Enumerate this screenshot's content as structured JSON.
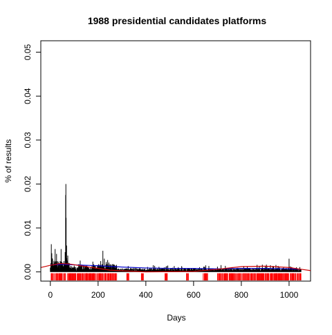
{
  "chart_data": {
    "type": "bar",
    "title": "1988 presidential candidates platforms",
    "xlabel": "Days",
    "ylabel": "% of results",
    "xlim": [
      -40,
      1090
    ],
    "ylim": [
      -0.0021,
      0.0526
    ],
    "x_ticks": [
      0,
      200,
      400,
      600,
      800,
      1000
    ],
    "y_ticks": [
      0.0,
      0.01,
      0.02,
      0.03,
      0.04,
      0.05
    ],
    "y_tick_labels": [
      "0.00",
      "0.01",
      "0.02",
      "0.03",
      "0.04",
      "0.05"
    ],
    "grid": false,
    "legend": "none",
    "colors": {
      "bars": "#000000",
      "smooth_red": "#cc0000",
      "smooth_blue": "#0000cc",
      "rug": "#ff0000"
    },
    "bar_series": {
      "name": "",
      "x_start": 0,
      "x_end": 1050,
      "x_step": 1,
      "segments": [
        {
          "from": 0,
          "to": 10,
          "base": 0.0035,
          "amp": 0.0028
        },
        {
          "from": 10,
          "to": 60,
          "base": 0.0025,
          "amp": 0.0025
        },
        {
          "from": 60,
          "to": 75,
          "base": 0.004,
          "amp": 0.003
        },
        {
          "from": 75,
          "to": 120,
          "base": 0.0015,
          "amp": 0.0015
        },
        {
          "from": 120,
          "to": 200,
          "base": 0.0015,
          "amp": 0.0015
        },
        {
          "from": 200,
          "to": 280,
          "base": 0.0018,
          "amp": 0.0018
        },
        {
          "from": 280,
          "to": 700,
          "base": 0.0008,
          "amp": 0.0008
        },
        {
          "from": 700,
          "to": 1050,
          "base": 0.0009,
          "amp": 0.0009
        }
      ],
      "peaks": [
        {
          "x": 4,
          "y": 0.0063
        },
        {
          "x": 20,
          "y": 0.0052
        },
        {
          "x": 45,
          "y": 0.0052
        },
        {
          "x": 62,
          "y": 0.0045
        },
        {
          "x": 64,
          "y": 0.0175
        },
        {
          "x": 65,
          "y": 0.02
        },
        {
          "x": 66,
          "y": 0.0123
        },
        {
          "x": 68,
          "y": 0.006
        },
        {
          "x": 220,
          "y": 0.0048
        },
        {
          "x": 1000,
          "y": 0.003
        }
      ]
    },
    "smooth_red": {
      "x": [
        -40,
        0,
        40,
        80,
        150,
        250,
        400,
        600,
        700,
        800,
        900,
        1000,
        1050,
        1090
      ],
      "y": [
        0.001,
        0.0015,
        0.0019,
        0.0018,
        0.0012,
        0.0004,
        0.0,
        0.0001,
        0.0006,
        0.0012,
        0.0013,
        0.001,
        0.0006,
        0.0003
      ]
    },
    "smooth_blue": {
      "x": [
        0,
        50,
        100,
        200,
        300,
        400,
        500,
        600,
        700,
        800,
        900,
        1000,
        1050
      ],
      "y": [
        0.0016,
        0.0017,
        0.0016,
        0.0014,
        0.0011,
        0.0009,
        0.0008,
        0.0008,
        0.0007,
        0.0008,
        0.0008,
        0.0007,
        0.0006
      ]
    },
    "rug_x_ranges": [
      [
        0,
        280
      ],
      [
        320,
        330
      ],
      [
        380,
        390
      ],
      [
        480,
        490
      ],
      [
        570,
        580
      ],
      [
        640,
        660
      ],
      [
        700,
        1050
      ]
    ]
  }
}
